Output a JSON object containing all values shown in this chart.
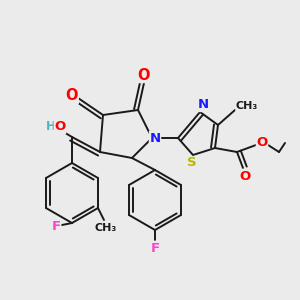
{
  "background_color": "#ebebeb",
  "line_color": "#1a1a1a",
  "bond_width": 1.4,
  "atom_colors": {
    "O": "#ff0000",
    "N": "#1a1aff",
    "S": "#b8b800",
    "F": "#ff44cc",
    "H": "#4db8b8",
    "C": "#1a1a1a"
  },
  "font_size": 8.5,
  "fig_width": 3.0,
  "fig_height": 3.0,
  "dpi": 100
}
